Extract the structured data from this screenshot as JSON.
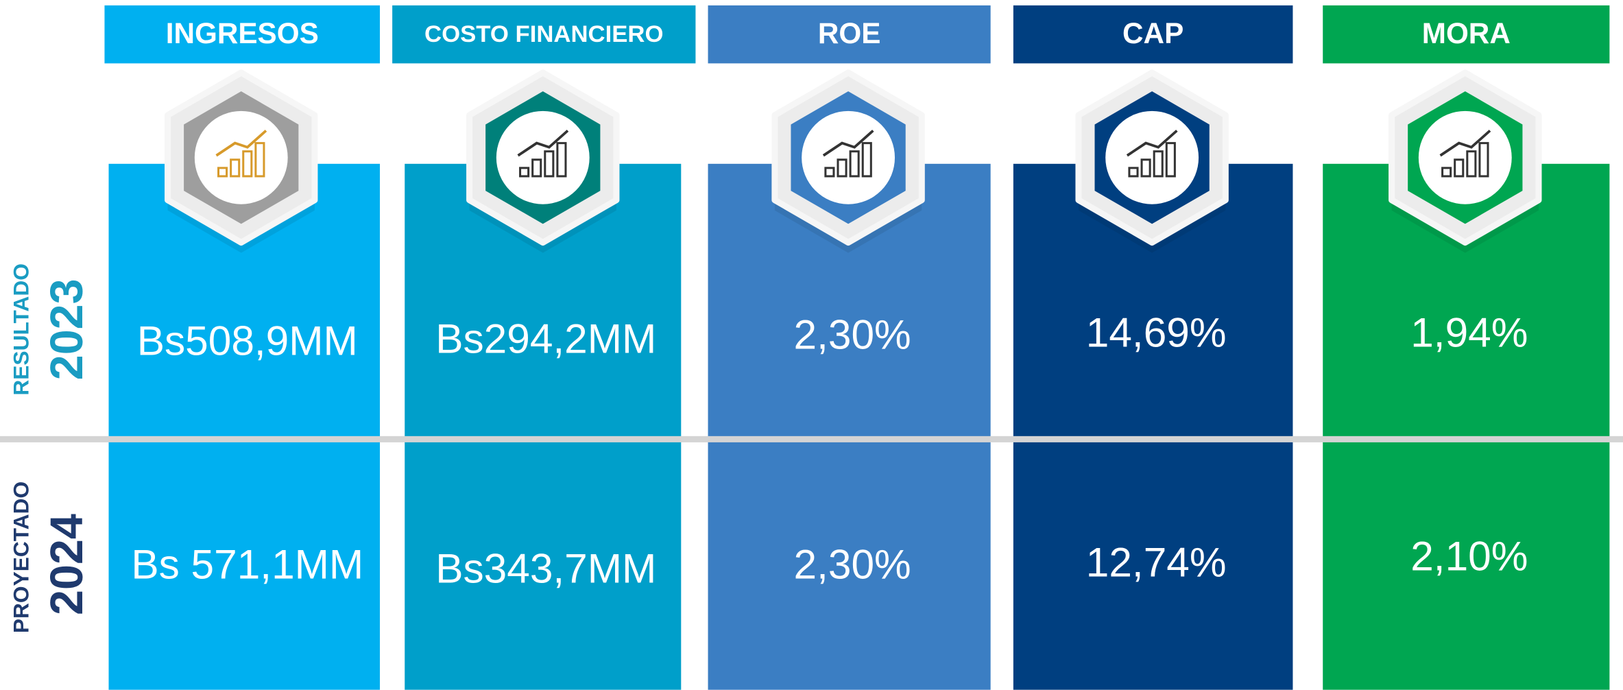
{
  "row_labels": [
    {
      "label": "RESULTADO",
      "year": "2023"
    },
    {
      "label": "PROYECTADO",
      "year": "2024"
    }
  ],
  "columns": [
    {
      "header": "INGRESOS",
      "result_2023": "Bs508,9MM",
      "projected_2024": "Bs 571,1MM"
    },
    {
      "header": "COSTO FINANCIERO",
      "result_2023": "Bs294,2MM",
      "projected_2024": "Bs343,7MM"
    },
    {
      "header": "ROE",
      "result_2023": "2,30%",
      "projected_2024": "2,30%"
    },
    {
      "header": "CAP",
      "result_2023": "14,69%",
      "projected_2024": "12,74%"
    },
    {
      "header": "MORA",
      "result_2023": "1,94%",
      "projected_2024": "2,10%"
    }
  ]
}
